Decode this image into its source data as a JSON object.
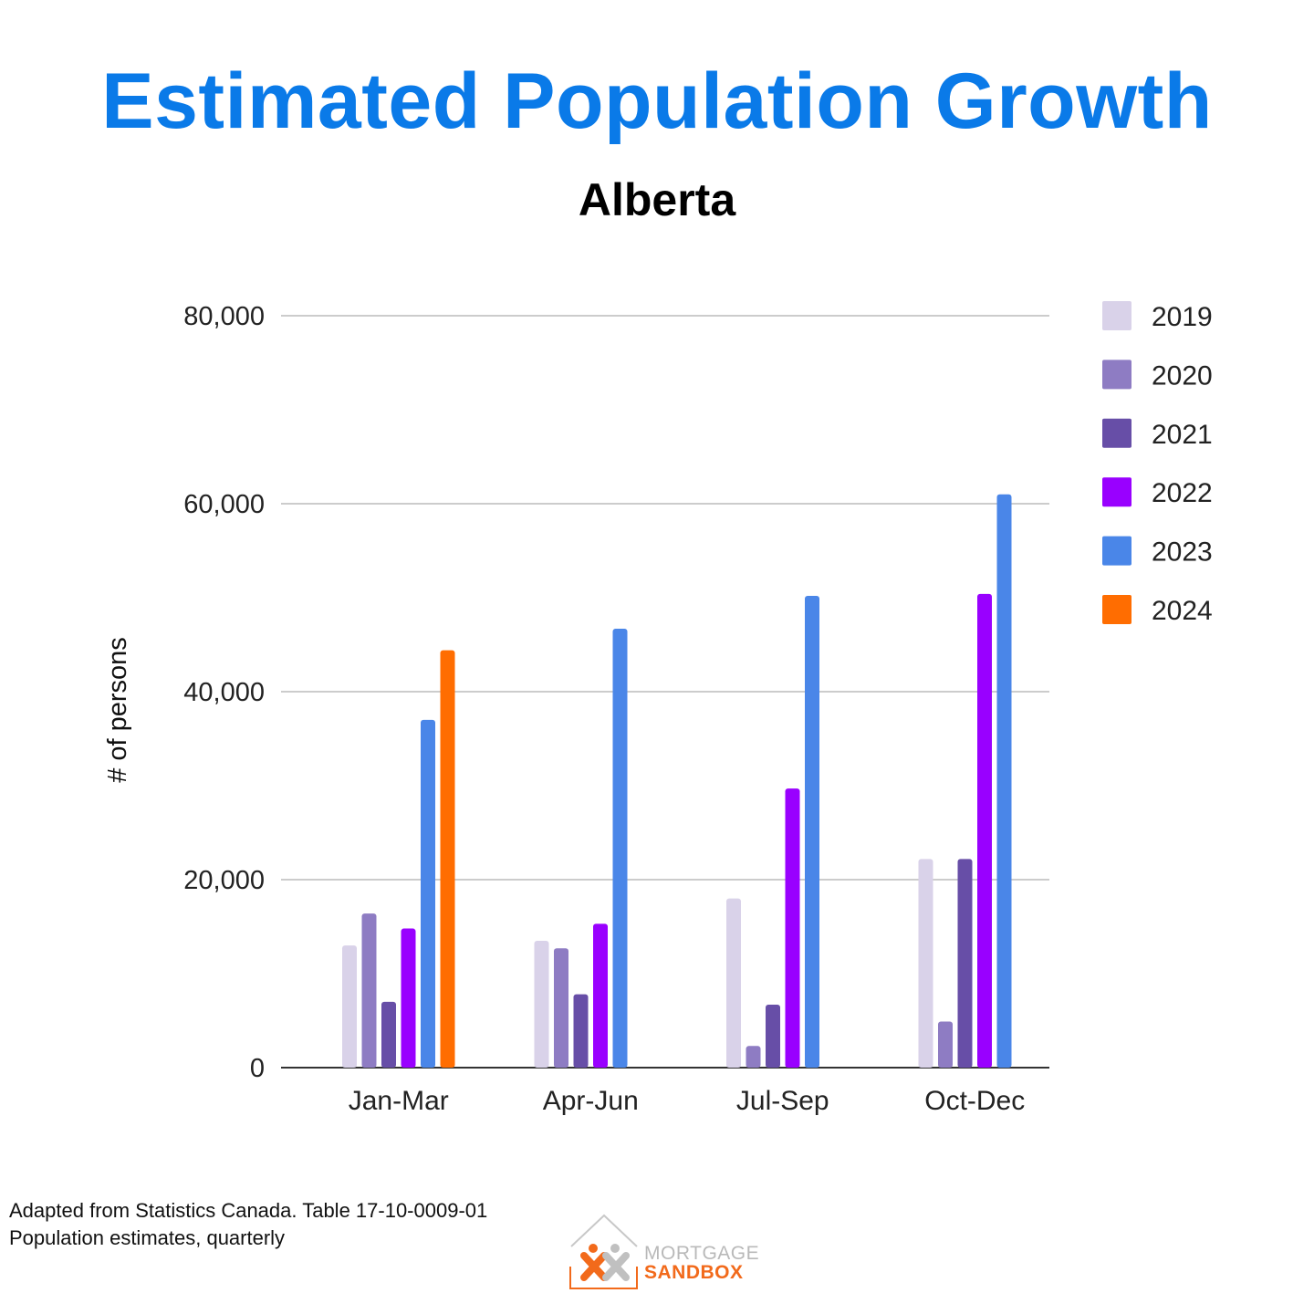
{
  "chart_data": {
    "type": "bar",
    "title": "Estimated Population Growth",
    "subtitle": "Alberta",
    "ylabel": "# of persons",
    "xlabel": "",
    "ylim": [
      0,
      80000
    ],
    "yticks": [
      0,
      20000,
      40000,
      60000,
      80000
    ],
    "ytick_labels": [
      "0",
      "20,000",
      "40,000",
      "60,000",
      "80,000"
    ],
    "grid": true,
    "legend_position": "right",
    "categories": [
      "Jan-Mar",
      "Apr-Jun",
      "Jul-Sep",
      "Oct-Dec"
    ],
    "series": [
      {
        "name": "2019",
        "color": "#d9d2e9",
        "values": [
          13000,
          13500,
          18000,
          22200
        ]
      },
      {
        "name": "2020",
        "color": "#8e7cc3",
        "values": [
          16400,
          12700,
          2300,
          4900
        ]
      },
      {
        "name": "2021",
        "color": "#674ea7",
        "values": [
          7000,
          7800,
          6700,
          22200
        ]
      },
      {
        "name": "2022",
        "color": "#9900ff",
        "values": [
          14800,
          15300,
          29700,
          50400
        ]
      },
      {
        "name": "2023",
        "color": "#4a86e8",
        "values": [
          37000,
          46700,
          50200,
          61000
        ]
      },
      {
        "name": "2024",
        "color": "#ff6d01",
        "values": [
          44400,
          null,
          null,
          null
        ]
      }
    ]
  },
  "footer": {
    "source_line1": "Adapted from Statistics Canada. Table 17-10-0009-01",
    "source_line2": "Population estimates, quarterly"
  },
  "logo": {
    "line1": "MORTGAGE",
    "line2": "SANDBOX"
  }
}
